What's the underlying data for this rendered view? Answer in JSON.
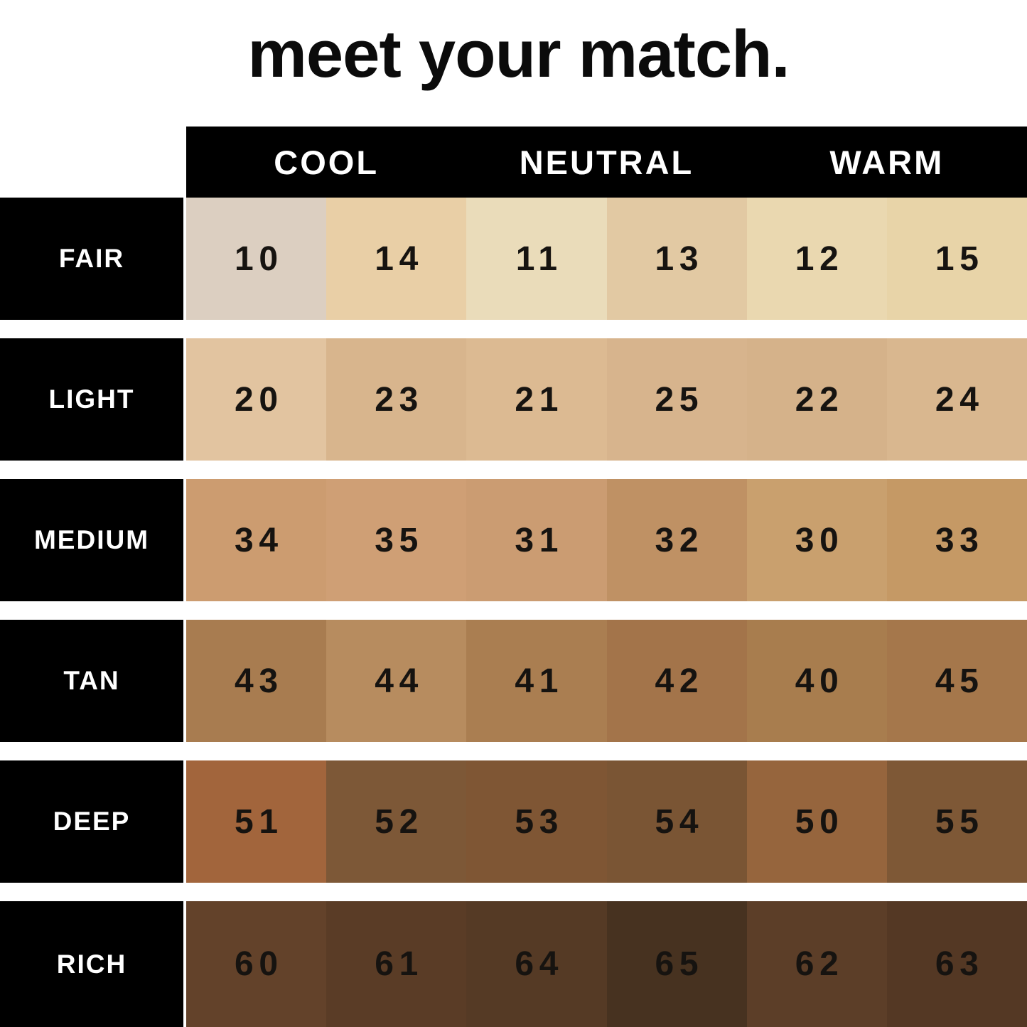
{
  "page": {
    "title": "meet your match."
  },
  "header": {
    "columns": [
      "COOL",
      "NEUTRAL",
      "WARM"
    ]
  },
  "chart_data": {
    "type": "heatmap",
    "title": "meet your match.",
    "description": "Foundation shade matching chart: rows are depth levels, column groups are undertones; each cell shows a shade number on its skin-tone color.",
    "column_groups": [
      "COOL",
      "NEUTRAL",
      "WARM"
    ],
    "columns_per_group": 2,
    "row_labels": [
      "FAIR",
      "LIGHT",
      "MEDIUM",
      "TAN",
      "DEEP",
      "RICH"
    ],
    "rows": [
      {
        "label": "FAIR",
        "shades": [
          {
            "number": "10",
            "undertone": "COOL",
            "color": "#dccfc1"
          },
          {
            "number": "14",
            "undertone": "COOL",
            "color": "#e9cfa6"
          },
          {
            "number": "11",
            "undertone": "NEUTRAL",
            "color": "#eadcba"
          },
          {
            "number": "13",
            "undertone": "NEUTRAL",
            "color": "#e2c9a3"
          },
          {
            "number": "12",
            "undertone": "WARM",
            "color": "#ead8b0"
          },
          {
            "number": "15",
            "undertone": "WARM",
            "color": "#e8d4a8"
          }
        ]
      },
      {
        "label": "LIGHT",
        "shades": [
          {
            "number": "20",
            "undertone": "COOL",
            "color": "#e2c4a0"
          },
          {
            "number": "23",
            "undertone": "COOL",
            "color": "#d8b58d"
          },
          {
            "number": "21",
            "undertone": "NEUTRAL",
            "color": "#dcba92"
          },
          {
            "number": "25",
            "undertone": "NEUTRAL",
            "color": "#d7b48d"
          },
          {
            "number": "22",
            "undertone": "WARM",
            "color": "#d5b28a"
          },
          {
            "number": "24",
            "undertone": "WARM",
            "color": "#d9b78f"
          }
        ]
      },
      {
        "label": "MEDIUM",
        "shades": [
          {
            "number": "34",
            "undertone": "COOL",
            "color": "#cc9c70"
          },
          {
            "number": "35",
            "undertone": "COOL",
            "color": "#cf9f75"
          },
          {
            "number": "31",
            "undertone": "NEUTRAL",
            "color": "#cb9c72"
          },
          {
            "number": "32",
            "undertone": "NEUTRAL",
            "color": "#bf9164"
          },
          {
            "number": "30",
            "undertone": "WARM",
            "color": "#c9a06e"
          },
          {
            "number": "33",
            "undertone": "WARM",
            "color": "#c59965"
          }
        ]
      },
      {
        "label": "TAN",
        "shades": [
          {
            "number": "43",
            "undertone": "COOL",
            "color": "#a87c50"
          },
          {
            "number": "44",
            "undertone": "COOL",
            "color": "#b78c5f"
          },
          {
            "number": "41",
            "undertone": "NEUTRAL",
            "color": "#aa7e51"
          },
          {
            "number": "42",
            "undertone": "NEUTRAL",
            "color": "#a3744a"
          },
          {
            "number": "40",
            "undertone": "WARM",
            "color": "#a87d4e"
          },
          {
            "number": "45",
            "undertone": "WARM",
            "color": "#a5774b"
          }
        ]
      },
      {
        "label": "DEEP",
        "shades": [
          {
            "number": "51",
            "undertone": "COOL",
            "color": "#a2653c"
          },
          {
            "number": "52",
            "undertone": "COOL",
            "color": "#7d5837"
          },
          {
            "number": "53",
            "undertone": "NEUTRAL",
            "color": "#7f5634"
          },
          {
            "number": "54",
            "undertone": "NEUTRAL",
            "color": "#7a5534"
          },
          {
            "number": "50",
            "undertone": "WARM",
            "color": "#96653d"
          },
          {
            "number": "55",
            "undertone": "WARM",
            "color": "#7e5836"
          }
        ]
      },
      {
        "label": "RICH",
        "shades": [
          {
            "number": "60",
            "undertone": "COOL",
            "color": "#63422a"
          },
          {
            "number": "61",
            "undertone": "COOL",
            "color": "#5a3c26"
          },
          {
            "number": "64",
            "undertone": "NEUTRAL",
            "color": "#553a25"
          },
          {
            "number": "65",
            "undertone": "NEUTRAL",
            "color": "#473220"
          },
          {
            "number": "62",
            "undertone": "WARM",
            "color": "#5c3e28"
          },
          {
            "number": "63",
            "undertone": "WARM",
            "color": "#543824"
          }
        ]
      }
    ],
    "layout": {
      "legend_position": "none",
      "grid": false,
      "header_bg": "#000000",
      "header_text_color": "#ffffff",
      "row_label_bg": "#000000",
      "row_label_text_color": "#ffffff",
      "number_text_color": "#161310",
      "background": "#ffffff"
    }
  }
}
